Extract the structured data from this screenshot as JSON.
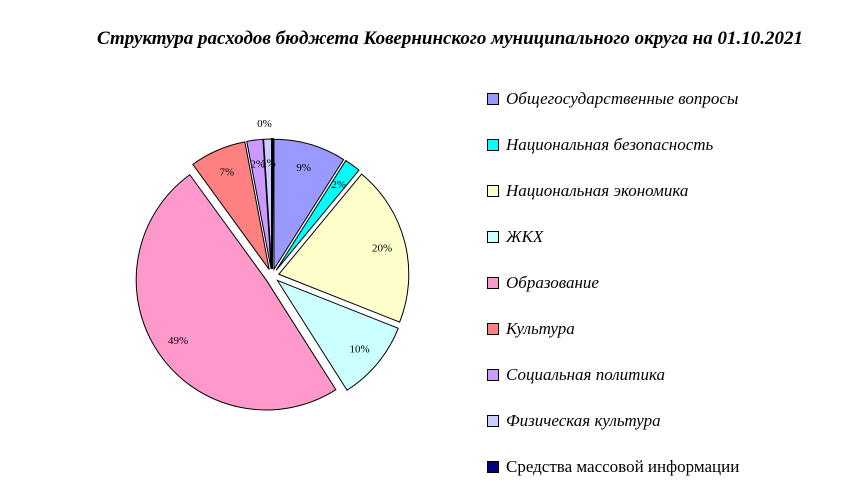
{
  "chart_data": {
    "type": "pie",
    "title": "Структура расходов бюджета Ковернинского муниципального округа на 01.10.2021",
    "legend_position": "right",
    "start_angle": "top, clockwise",
    "exploded": true,
    "slices": [
      {
        "name": "Общегосударственные вопросы",
        "value": 9,
        "label": "9%",
        "color": "#9999ff"
      },
      {
        "name": "Национальная безопасность",
        "value": 2,
        "label": "2%",
        "color": "#00ffff"
      },
      {
        "name": "Национальная экономика",
        "value": 20,
        "label": "20%",
        "color": "#ffffcc"
      },
      {
        "name": "ЖКХ",
        "value": 10,
        "label": "10%",
        "color": "#ccffff"
      },
      {
        "name": "Образование",
        "value": 49,
        "label": "49%",
        "color": "#ff99cc"
      },
      {
        "name": "Культура",
        "value": 7,
        "label": "7%",
        "color": "#ff8080"
      },
      {
        "name": "Социальная политика",
        "value": 2,
        "label": "2%",
        "color": "#cc99ff"
      },
      {
        "name": "Физическая культура",
        "value": 1,
        "label": "1%",
        "color": "#ccccff"
      },
      {
        "name": "Средства массовой информации",
        "value": 0,
        "label": "0%",
        "color": "#000080"
      }
    ]
  }
}
